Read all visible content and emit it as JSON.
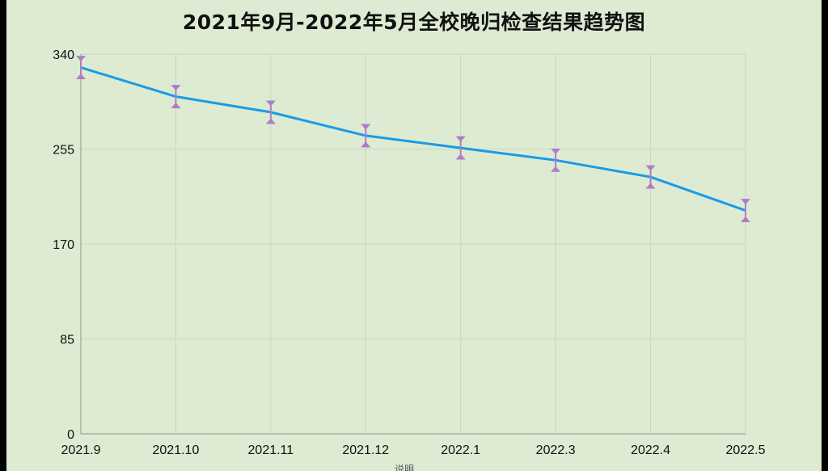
{
  "chart_data": {
    "type": "line",
    "title": "2021年9月-2022年5月全校晚归检查结果趋势图",
    "categories": [
      "2021.9",
      "2021.10",
      "2021.11",
      "2021.12",
      "2022.1",
      "2022.3",
      "2022.4",
      "2022.5"
    ],
    "series": [
      {
        "name": "",
        "values": [
          328,
          302,
          288,
          267,
          256,
          245,
          230,
          200
        ],
        "error": 9
      }
    ],
    "ylim": [
      0,
      340
    ],
    "yticks": [
      0,
      85,
      170,
      255,
      340
    ],
    "grid": true,
    "legend": "none",
    "colors": {
      "line": "#1a9be6",
      "error_bar": "#b07cc6",
      "grid": "#c9d6c0",
      "background": "#dcebd2"
    }
  },
  "caption": "说明"
}
